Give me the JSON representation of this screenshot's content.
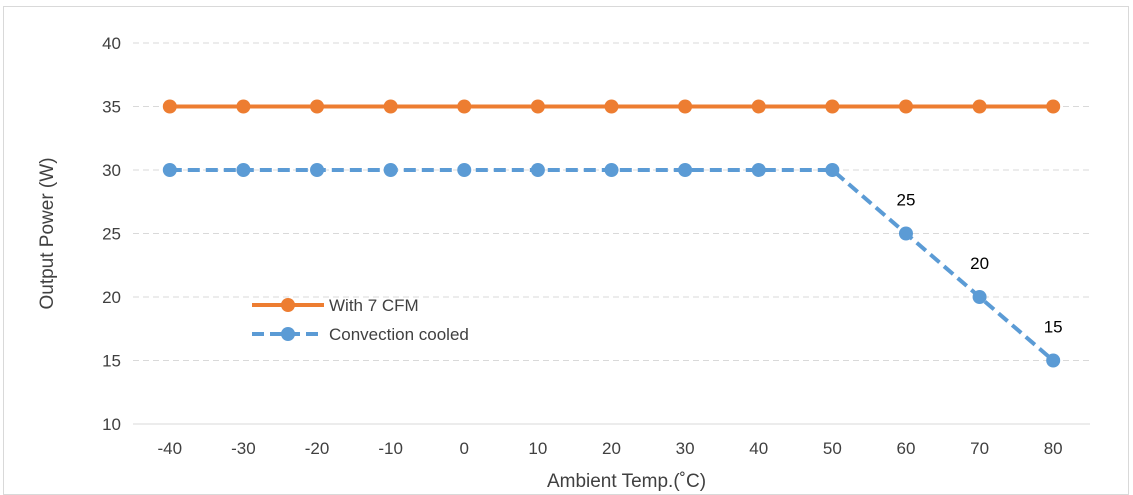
{
  "chart_data": {
    "type": "line",
    "title": "",
    "xlabel": "Ambient Temp.(˚C)",
    "ylabel": "Output  Power (W)",
    "x": [
      -40,
      -30,
      -20,
      -10,
      0,
      10,
      20,
      30,
      40,
      50,
      60,
      70,
      80
    ],
    "x_tick_labels": [
      "-40",
      "-30",
      "-20",
      "-10",
      "0",
      "10",
      "20",
      "30",
      "40",
      "50",
      "60",
      "70",
      "80"
    ],
    "ylim": [
      10,
      40
    ],
    "y_ticks": [
      10,
      15,
      20,
      25,
      30,
      35,
      40
    ],
    "y_tick_labels": [
      "10",
      "15",
      "20",
      "25",
      "30",
      "35",
      "40"
    ],
    "grid": "horizontal dashed",
    "legend_position": "center-left",
    "series": [
      {
        "name": "With 7 CFM",
        "values": [
          35,
          35,
          35,
          35,
          35,
          35,
          35,
          35,
          35,
          35,
          35,
          35,
          35
        ],
        "color": "#ed7d31",
        "style": "solid"
      },
      {
        "name": "Convection cooled",
        "values": [
          30,
          30,
          30,
          30,
          30,
          30,
          30,
          30,
          30,
          30,
          25,
          20,
          15
        ],
        "color": "#5b9bd5",
        "style": "dashed"
      }
    ],
    "data_labels": [
      {
        "series": "Convection cooled",
        "x": 60,
        "text": "25"
      },
      {
        "series": "Convection cooled",
        "x": 70,
        "text": "20"
      },
      {
        "series": "Convection cooled",
        "x": 80,
        "text": "15"
      }
    ],
    "colors": {
      "grid": "#d9d9d9",
      "axis": "#d9d9d9",
      "text": "#404040"
    }
  }
}
